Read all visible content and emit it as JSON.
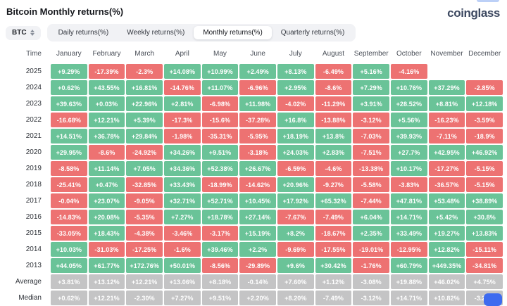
{
  "header": {
    "title": "Bitcoin Monthly returns(%)",
    "logo": "coinglass"
  },
  "toolbar": {
    "symbol": "BTC",
    "tabs": [
      {
        "label": "Daily returns(%)",
        "active": false
      },
      {
        "label": "Weekly returns(%)",
        "active": false
      },
      {
        "label": "Monthly returns(%)",
        "active": true
      },
      {
        "label": "Quarterly returns(%)",
        "active": false
      }
    ]
  },
  "colors": {
    "positive": "#6ac398",
    "negative": "#ed7272",
    "neutral": "#c4c4c5",
    "tab_bg": "#f1f2f5",
    "active_tab_bg": "#ffffff",
    "logo": "#3d4961",
    "chat": "#3e6bef"
  },
  "chart_data": {
    "type": "heatmap",
    "title": "Bitcoin Monthly returns(%)",
    "legend_note": "green = positive monthly return, red = negative, gray = Average/Median summary rows",
    "columns": [
      "Time",
      "January",
      "February",
      "March",
      "April",
      "May",
      "June",
      "July",
      "August",
      "September",
      "October",
      "November",
      "December"
    ],
    "rows": [
      {
        "label": "2025",
        "kind": "year",
        "values": [
          "+9.29%",
          "-17.39%",
          "-2.3%",
          "+14.08%",
          "+10.99%",
          "+2.49%",
          "+8.13%",
          "-6.49%",
          "+5.16%",
          "-4.16%",
          "",
          ""
        ]
      },
      {
        "label": "2024",
        "kind": "year",
        "values": [
          "+0.62%",
          "+43.55%",
          "+16.81%",
          "-14.76%",
          "+11.07%",
          "-6.96%",
          "+2.95%",
          "-8.6%",
          "+7.29%",
          "+10.76%",
          "+37.29%",
          "-2.85%"
        ]
      },
      {
        "label": "2023",
        "kind": "year",
        "values": [
          "+39.63%",
          "+0.03%",
          "+22.96%",
          "+2.81%",
          "-6.98%",
          "+11.98%",
          "-4.02%",
          "-11.29%",
          "+3.91%",
          "+28.52%",
          "+8.81%",
          "+12.18%"
        ]
      },
      {
        "label": "2022",
        "kind": "year",
        "values": [
          "-16.68%",
          "+12.21%",
          "+5.39%",
          "-17.3%",
          "-15.6%",
          "-37.28%",
          "+16.8%",
          "-13.88%",
          "-3.12%",
          "+5.56%",
          "-16.23%",
          "-3.59%"
        ]
      },
      {
        "label": "2021",
        "kind": "year",
        "values": [
          "+14.51%",
          "+36.78%",
          "+29.84%",
          "-1.98%",
          "-35.31%",
          "-5.95%",
          "+18.19%",
          "+13.8%",
          "-7.03%",
          "+39.93%",
          "-7.11%",
          "-18.9%"
        ]
      },
      {
        "label": "2020",
        "kind": "year",
        "values": [
          "+29.95%",
          "-8.6%",
          "-24.92%",
          "+34.26%",
          "+9.51%",
          "-3.18%",
          "+24.03%",
          "+2.83%",
          "-7.51%",
          "+27.7%",
          "+42.95%",
          "+46.92%"
        ]
      },
      {
        "label": "2019",
        "kind": "year",
        "values": [
          "-8.58%",
          "+11.14%",
          "+7.05%",
          "+34.36%",
          "+52.38%",
          "+26.67%",
          "-6.59%",
          "-4.6%",
          "-13.38%",
          "+10.17%",
          "-17.27%",
          "-5.15%"
        ]
      },
      {
        "label": "2018",
        "kind": "year",
        "values": [
          "-25.41%",
          "+0.47%",
          "-32.85%",
          "+33.43%",
          "-18.99%",
          "-14.62%",
          "+20.96%",
          "-9.27%",
          "-5.58%",
          "-3.83%",
          "-36.57%",
          "-5.15%"
        ]
      },
      {
        "label": "2017",
        "kind": "year",
        "values": [
          "-0.04%",
          "+23.07%",
          "-9.05%",
          "+32.71%",
          "+52.71%",
          "+10.45%",
          "+17.92%",
          "+65.32%",
          "-7.44%",
          "+47.81%",
          "+53.48%",
          "+38.89%"
        ]
      },
      {
        "label": "2016",
        "kind": "year",
        "values": [
          "-14.83%",
          "+20.08%",
          "-5.35%",
          "+7.27%",
          "+18.78%",
          "+27.14%",
          "-7.67%",
          "-7.49%",
          "+6.04%",
          "+14.71%",
          "+5.42%",
          "+30.8%"
        ]
      },
      {
        "label": "2015",
        "kind": "year",
        "values": [
          "-33.05%",
          "+18.43%",
          "-4.38%",
          "-3.46%",
          "-3.17%",
          "+15.19%",
          "+8.2%",
          "-18.67%",
          "+2.35%",
          "+33.49%",
          "+19.27%",
          "+13.83%"
        ]
      },
      {
        "label": "2014",
        "kind": "year",
        "values": [
          "+10.03%",
          "-31.03%",
          "-17.25%",
          "-1.6%",
          "+39.46%",
          "+2.2%",
          "-9.69%",
          "-17.55%",
          "-19.01%",
          "-12.95%",
          "+12.82%",
          "-15.11%"
        ]
      },
      {
        "label": "2013",
        "kind": "year",
        "values": [
          "+44.05%",
          "+61.77%",
          "+172.76%",
          "+50.01%",
          "-8.56%",
          "-29.89%",
          "+9.6%",
          "+30.42%",
          "-1.76%",
          "+60.79%",
          "+449.35%",
          "-34.81%"
        ]
      },
      {
        "label": "Average",
        "kind": "summary",
        "values": [
          "+3.81%",
          "+13.12%",
          "+12.21%",
          "+13.06%",
          "+8.18%",
          "-0.14%",
          "+7.60%",
          "+1.12%",
          "-3.08%",
          "+19.88%",
          "+46.02%",
          "+4.75%"
        ]
      },
      {
        "label": "Median",
        "kind": "summary",
        "values": [
          "+0.62%",
          "+12.21%",
          "-2.30%",
          "+7.27%",
          "+9.51%",
          "+2.20%",
          "+8.20%",
          "-7.49%",
          "-3.12%",
          "+14.71%",
          "+10.82%",
          "-3.22%"
        ]
      }
    ]
  }
}
